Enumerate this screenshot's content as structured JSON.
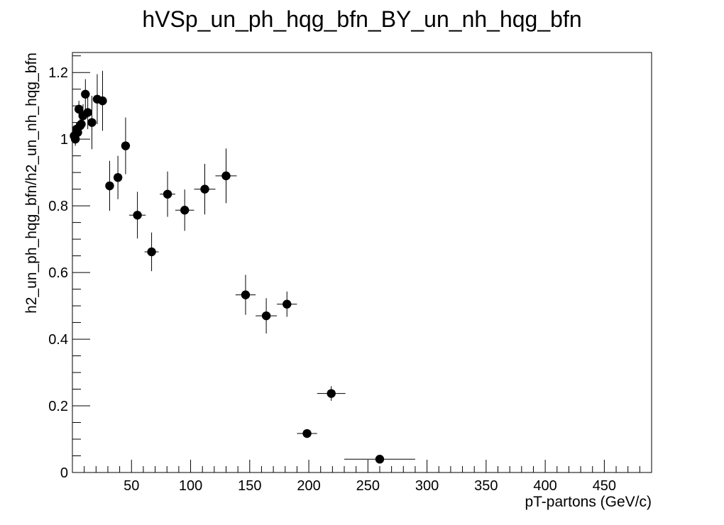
{
  "chart_data": {
    "type": "scatter",
    "title": "hVSp_un_ph_hqg_bfn_BY_un_nh_hqg_bfn",
    "xlabel": "pT-partons (GeV/c)",
    "ylabel": "h2_un_ph_hqg_bfn/h2_un_nh_hqg_bfn",
    "xlim": [
      0,
      490
    ],
    "ylim": [
      0,
      1.26
    ],
    "x_ticks": [
      50,
      100,
      150,
      200,
      250,
      300,
      350,
      400,
      450
    ],
    "y_ticks": [
      0,
      0.2,
      0.4,
      0.6,
      0.8,
      1,
      1.2
    ],
    "x_tick_labels": [
      "50",
      "100",
      "150",
      "200",
      "250",
      "300",
      "350",
      "400",
      "450"
    ],
    "y_tick_labels": [
      "0",
      "0.2",
      "0.4",
      "0.6",
      "0.8",
      "1",
      "1.2"
    ],
    "grid": false,
    "marker_color": "#000000",
    "points": [
      {
        "x": 1.5,
        "y": 1.01,
        "xerr": 0.5,
        "yerr": 0.02
      },
      {
        "x": 2.5,
        "y": 1.0,
        "xerr": 0.5,
        "yerr": 0.02
      },
      {
        "x": 3.5,
        "y": 1.03,
        "xerr": 0.5,
        "yerr": 0.02
      },
      {
        "x": 4.5,
        "y": 1.02,
        "xerr": 0.5,
        "yerr": 0.025
      },
      {
        "x": 5.5,
        "y": 1.09,
        "xerr": 0.5,
        "yerr": 0.025
      },
      {
        "x": 6.5,
        "y": 1.04,
        "xerr": 0.5,
        "yerr": 0.03
      },
      {
        "x": 7.5,
        "y": 1.045,
        "xerr": 0.5,
        "yerr": 0.03
      },
      {
        "x": 9,
        "y": 1.07,
        "xerr": 1,
        "yerr": 0.035
      },
      {
        "x": 11,
        "y": 1.135,
        "xerr": 1,
        "yerr": 0.045
      },
      {
        "x": 13,
        "y": 1.08,
        "xerr": 1,
        "yerr": 0.05
      },
      {
        "x": 16.5,
        "y": 1.05,
        "xerr": 2.5,
        "yerr": 0.08
      },
      {
        "x": 21,
        "y": 1.12,
        "xerr": 2,
        "yerr": 0.075
      },
      {
        "x": 25.5,
        "y": 1.115,
        "xerr": 2.5,
        "yerr": 0.09
      },
      {
        "x": 31.5,
        "y": 0.86,
        "xerr": 3.5,
        "yerr": 0.075
      },
      {
        "x": 38.5,
        "y": 0.885,
        "xerr": 3.5,
        "yerr": 0.065
      },
      {
        "x": 45,
        "y": 0.98,
        "xerr": 3,
        "yerr": 0.085
      },
      {
        "x": 55,
        "y": 0.772,
        "xerr": 7,
        "yerr": 0.07
      },
      {
        "x": 67,
        "y": 0.662,
        "xerr": 6,
        "yerr": 0.058
      },
      {
        "x": 80.5,
        "y": 0.835,
        "xerr": 6.5,
        "yerr": 0.068
      },
      {
        "x": 95,
        "y": 0.787,
        "xerr": 8,
        "yerr": 0.062
      },
      {
        "x": 112,
        "y": 0.85,
        "xerr": 9,
        "yerr": 0.076
      },
      {
        "x": 130,
        "y": 0.89,
        "xerr": 9,
        "yerr": 0.082
      },
      {
        "x": 146.5,
        "y": 0.533,
        "xerr": 8.5,
        "yerr": 0.06
      },
      {
        "x": 164,
        "y": 0.47,
        "xerr": 9,
        "yerr": 0.053
      },
      {
        "x": 181.5,
        "y": 0.505,
        "xerr": 8.5,
        "yerr": 0.038
      },
      {
        "x": 198.5,
        "y": 0.117,
        "xerr": 8.5,
        "yerr": 0.012
      },
      {
        "x": 219,
        "y": 0.237,
        "xerr": 12,
        "yerr": 0.022
      },
      {
        "x": 260,
        "y": 0.04,
        "xerr": 30,
        "yerr": 0.008
      }
    ]
  }
}
